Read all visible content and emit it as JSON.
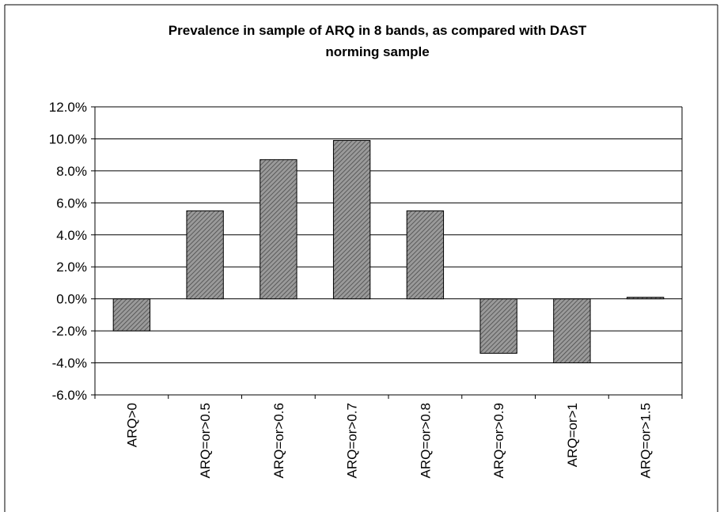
{
  "chart_data": {
    "type": "bar",
    "title_lines": [
      "Prevalence in sample of ARQ in 8 bands, as compared with DAST",
      "norming sample"
    ],
    "categories": [
      "ARQ>0",
      "ARQ=or>0.5",
      "ARQ=or>0.6",
      "ARQ=or>0.7",
      "ARQ=or>0.8",
      "ARQ=or>0.9",
      "ARQ=or>1",
      "ARQ=or>1.5"
    ],
    "values": [
      -2.0,
      5.5,
      8.7,
      9.9,
      5.5,
      -3.4,
      -4.0,
      0.1
    ],
    "y_ticks": [
      "12.0%",
      "10.0%",
      "8.0%",
      "6.0%",
      "4.0%",
      "2.0%",
      "0.0%",
      "-2.0%",
      "-4.0%",
      "-6.0%"
    ],
    "ylim": [
      -6,
      12
    ],
    "xlabel": "",
    "ylabel": "",
    "grid": true,
    "legend": "none",
    "bar_fill": "#888888",
    "bar_pattern": "diagonal-hatch"
  }
}
